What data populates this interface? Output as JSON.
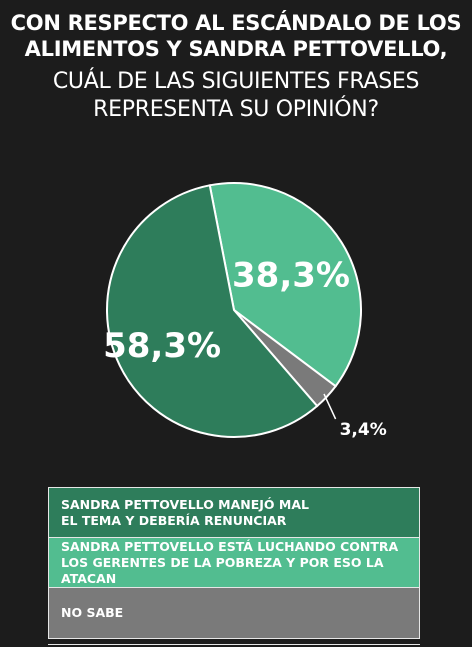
{
  "header": {
    "line1": "CON RESPECTO AL ESCÁNDALO DE LOS",
    "line2": "ALIMENTOS Y SANDRA PETTOVELLO,",
    "line3": "CUÁL DE LAS SIGUIENTES FRASES",
    "line4": "REPRESENTA SU OPINIÓN?"
  },
  "colors": {
    "background": "#1c1c1c",
    "dark_green": "#2e7d5b",
    "light_green": "#52bd90",
    "gray": "#7a7a7a"
  },
  "chart_data": {
    "type": "pie",
    "title": "CON RESPECTO AL ESCÁNDALO DE LOS ALIMENTOS Y SANDRA PETTOVELLO, CUÁL DE LAS SIGUIENTES FRASES REPRESENTA SU OPINIÓN?",
    "slices": [
      {
        "label": "SANDRA PETTOVELLO ESTÁ LUCHANDO CONTRA LOS GERENTES DE LA POBREZA Y POR ESO LA ATACAN",
        "value": 38.3,
        "display": "38,3%",
        "color": "#52bd90"
      },
      {
        "label": "NO SABE",
        "value": 3.4,
        "display": "3,4%",
        "color": "#7a7a7a"
      },
      {
        "label": "SANDRA PETTOVELLO MANEJÓ MAL EL TEMA Y DEBERÍA RENUNCIAR",
        "value": 58.3,
        "display": "58,3%",
        "color": "#2e7d5b"
      }
    ],
    "legend_position": "bottom"
  },
  "legend": [
    {
      "text": "SANDRA PETTOVELLO MANEJÓ MAL EL TEMA Y DEBERÍA RENUNCIAR",
      "color": "#2e7d5b"
    },
    {
      "text": "SANDRA PETTOVELLO ESTÁ LUCHANDO CONTRA LOS GERENTES DE LA POBREZA Y POR ESO LA ATACAN",
      "color": "#52bd90"
    },
    {
      "text": "NO SABE",
      "color": "#7a7a7a"
    }
  ]
}
